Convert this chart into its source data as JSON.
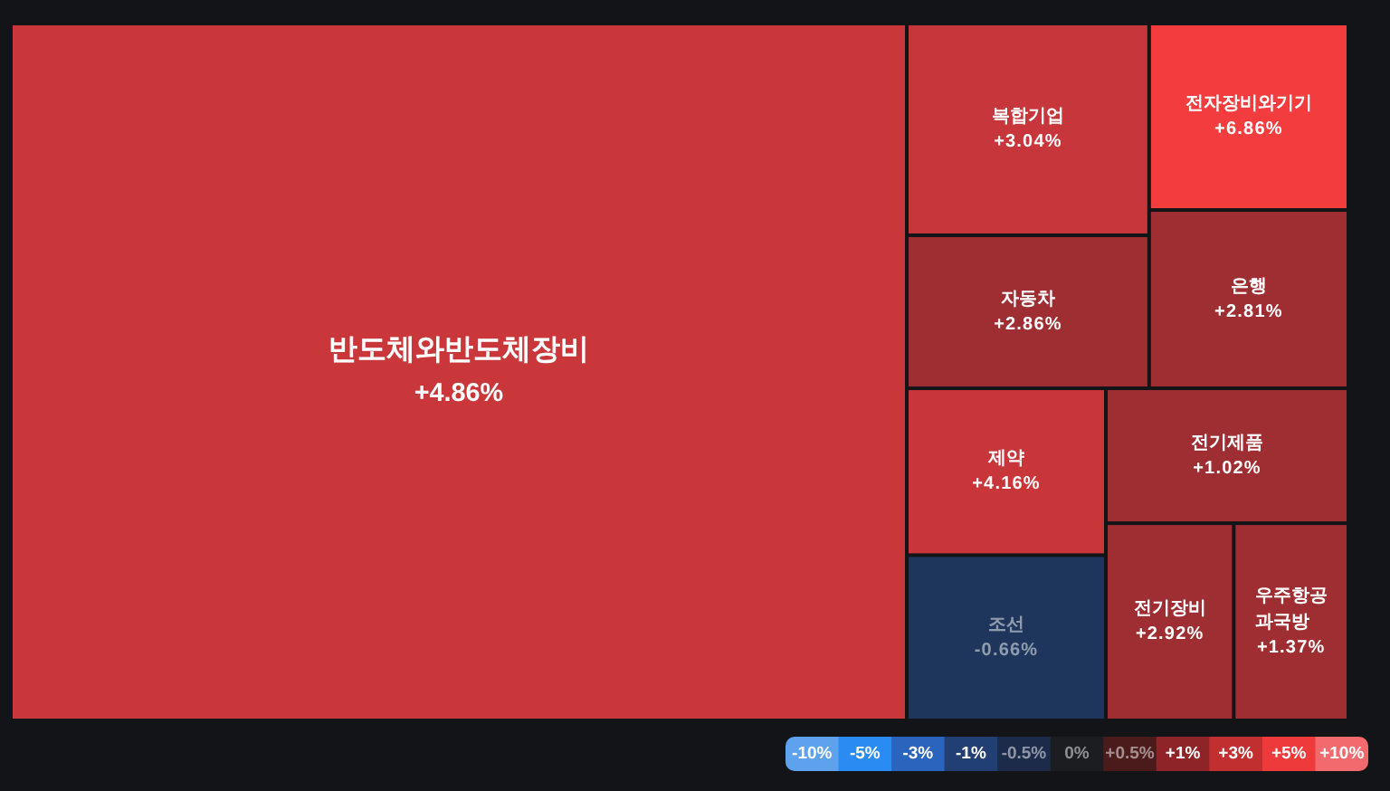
{
  "chart_data": [
    {
      "type": "other",
      "categories": [
        "반도체와반도체장비",
        "복합기업",
        "자동차",
        "전자장비와기기",
        "은행",
        "제약",
        "조선",
        "전기제품",
        "전기장비",
        "우주항공과국방"
      ],
      "values": [
        4.86,
        3.04,
        2.86,
        6.86,
        2.81,
        4.16,
        -0.66,
        1.02,
        2.92,
        1.37
      ],
      "value_labels": [
        "+4.86%",
        "+3.04%",
        "+2.86%",
        "+6.86%",
        "+2.81%",
        "+4.16%",
        "-0.66%",
        "+1.02%",
        "+2.92%",
        "+1.37%"
      ],
      "colors": [
        "#c9373a",
        "#c6363a",
        "#9f2e32",
        "#f23c3e",
        "#9f2e32",
        "#c9363a",
        "#1e365b",
        "#9f2e32",
        "#9e2e31",
        "#9e2e31"
      ]
    },
    {
      "type": "heatmap",
      "categories": [
        null,
        null,
        null,
        null,
        null,
        null,
        null,
        null,
        null,
        null,
        null
      ],
      "y_categories": [
        null
      ],
      "cells": [
        [
          -10,
          -5,
          -3,
          -1,
          -0.5,
          0,
          0.5,
          1,
          3,
          5,
          10
        ]
      ],
      "cell_labels": [
        [
          "-10%",
          "-5%",
          "-3%",
          "-1%",
          "-0.5%",
          "0%",
          "+0.5%",
          "+1%",
          "+3%",
          "+5%",
          "+10%"
        ]
      ],
      "colors": [
        "#5ea2ee",
        "#2a8cf2",
        "#2a64bd",
        "#213f72",
        "#1c2b4a",
        "#1c1d20",
        "#4b1b1c",
        "#8e2427",
        "#c22f31",
        "#ee3a3b",
        "#f26a6d"
      ]
    }
  ]
}
